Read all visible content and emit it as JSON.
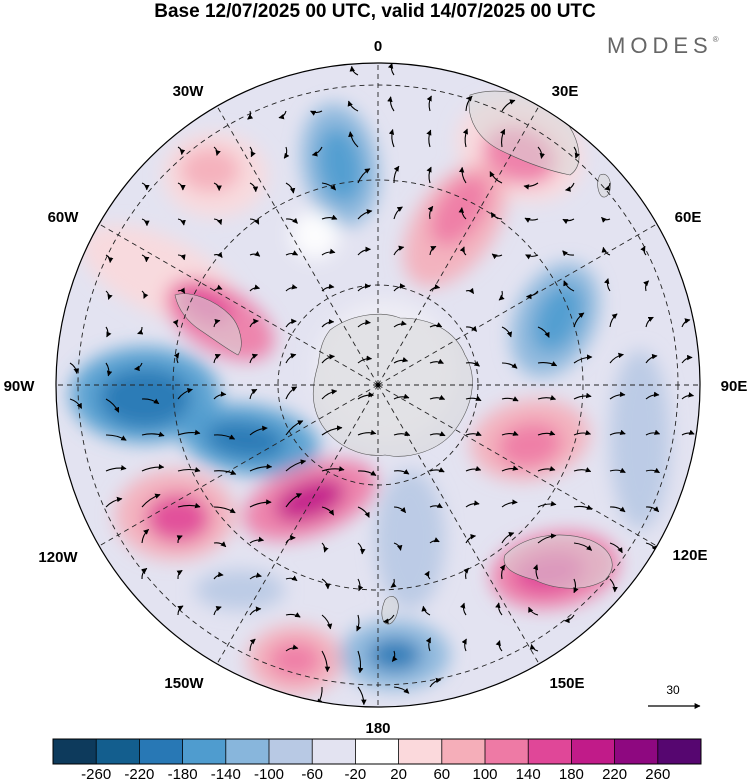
{
  "title": "Base 12/07/2025 00 UTC, valid 14/07/2025 00 UTC",
  "logo": "MODES",
  "logo_mark": "®",
  "projection": "south-polar-stereographic",
  "longitude_labels": {
    "top": "0",
    "top_right": "30E",
    "right_upper": "60E",
    "right": "90E",
    "right_lower": "120E",
    "bottom_right": "150E",
    "bottom": "180",
    "bottom_left": "150W",
    "left_lower": "120W",
    "left": "90W",
    "left_upper": "60W",
    "top_left": "30W"
  },
  "reference_vector": {
    "label": "30"
  },
  "colorbar": {
    "colors": [
      "#0d3a5c",
      "#135e8e",
      "#2878b5",
      "#4f9ccf",
      "#88b6dc",
      "#b8c9e4",
      "#e3e3f1",
      "#ffffff",
      "#fbd9dc",
      "#f5aeb9",
      "#ee7aa5",
      "#e04798",
      "#c11b89",
      "#8e0880",
      "#560670"
    ],
    "tick_labels": [
      "-260",
      "-220",
      "-180",
      "-140",
      "-100",
      "-60",
      "-20",
      "20",
      "60",
      "100",
      "140",
      "180",
      "220",
      "260"
    ]
  }
}
